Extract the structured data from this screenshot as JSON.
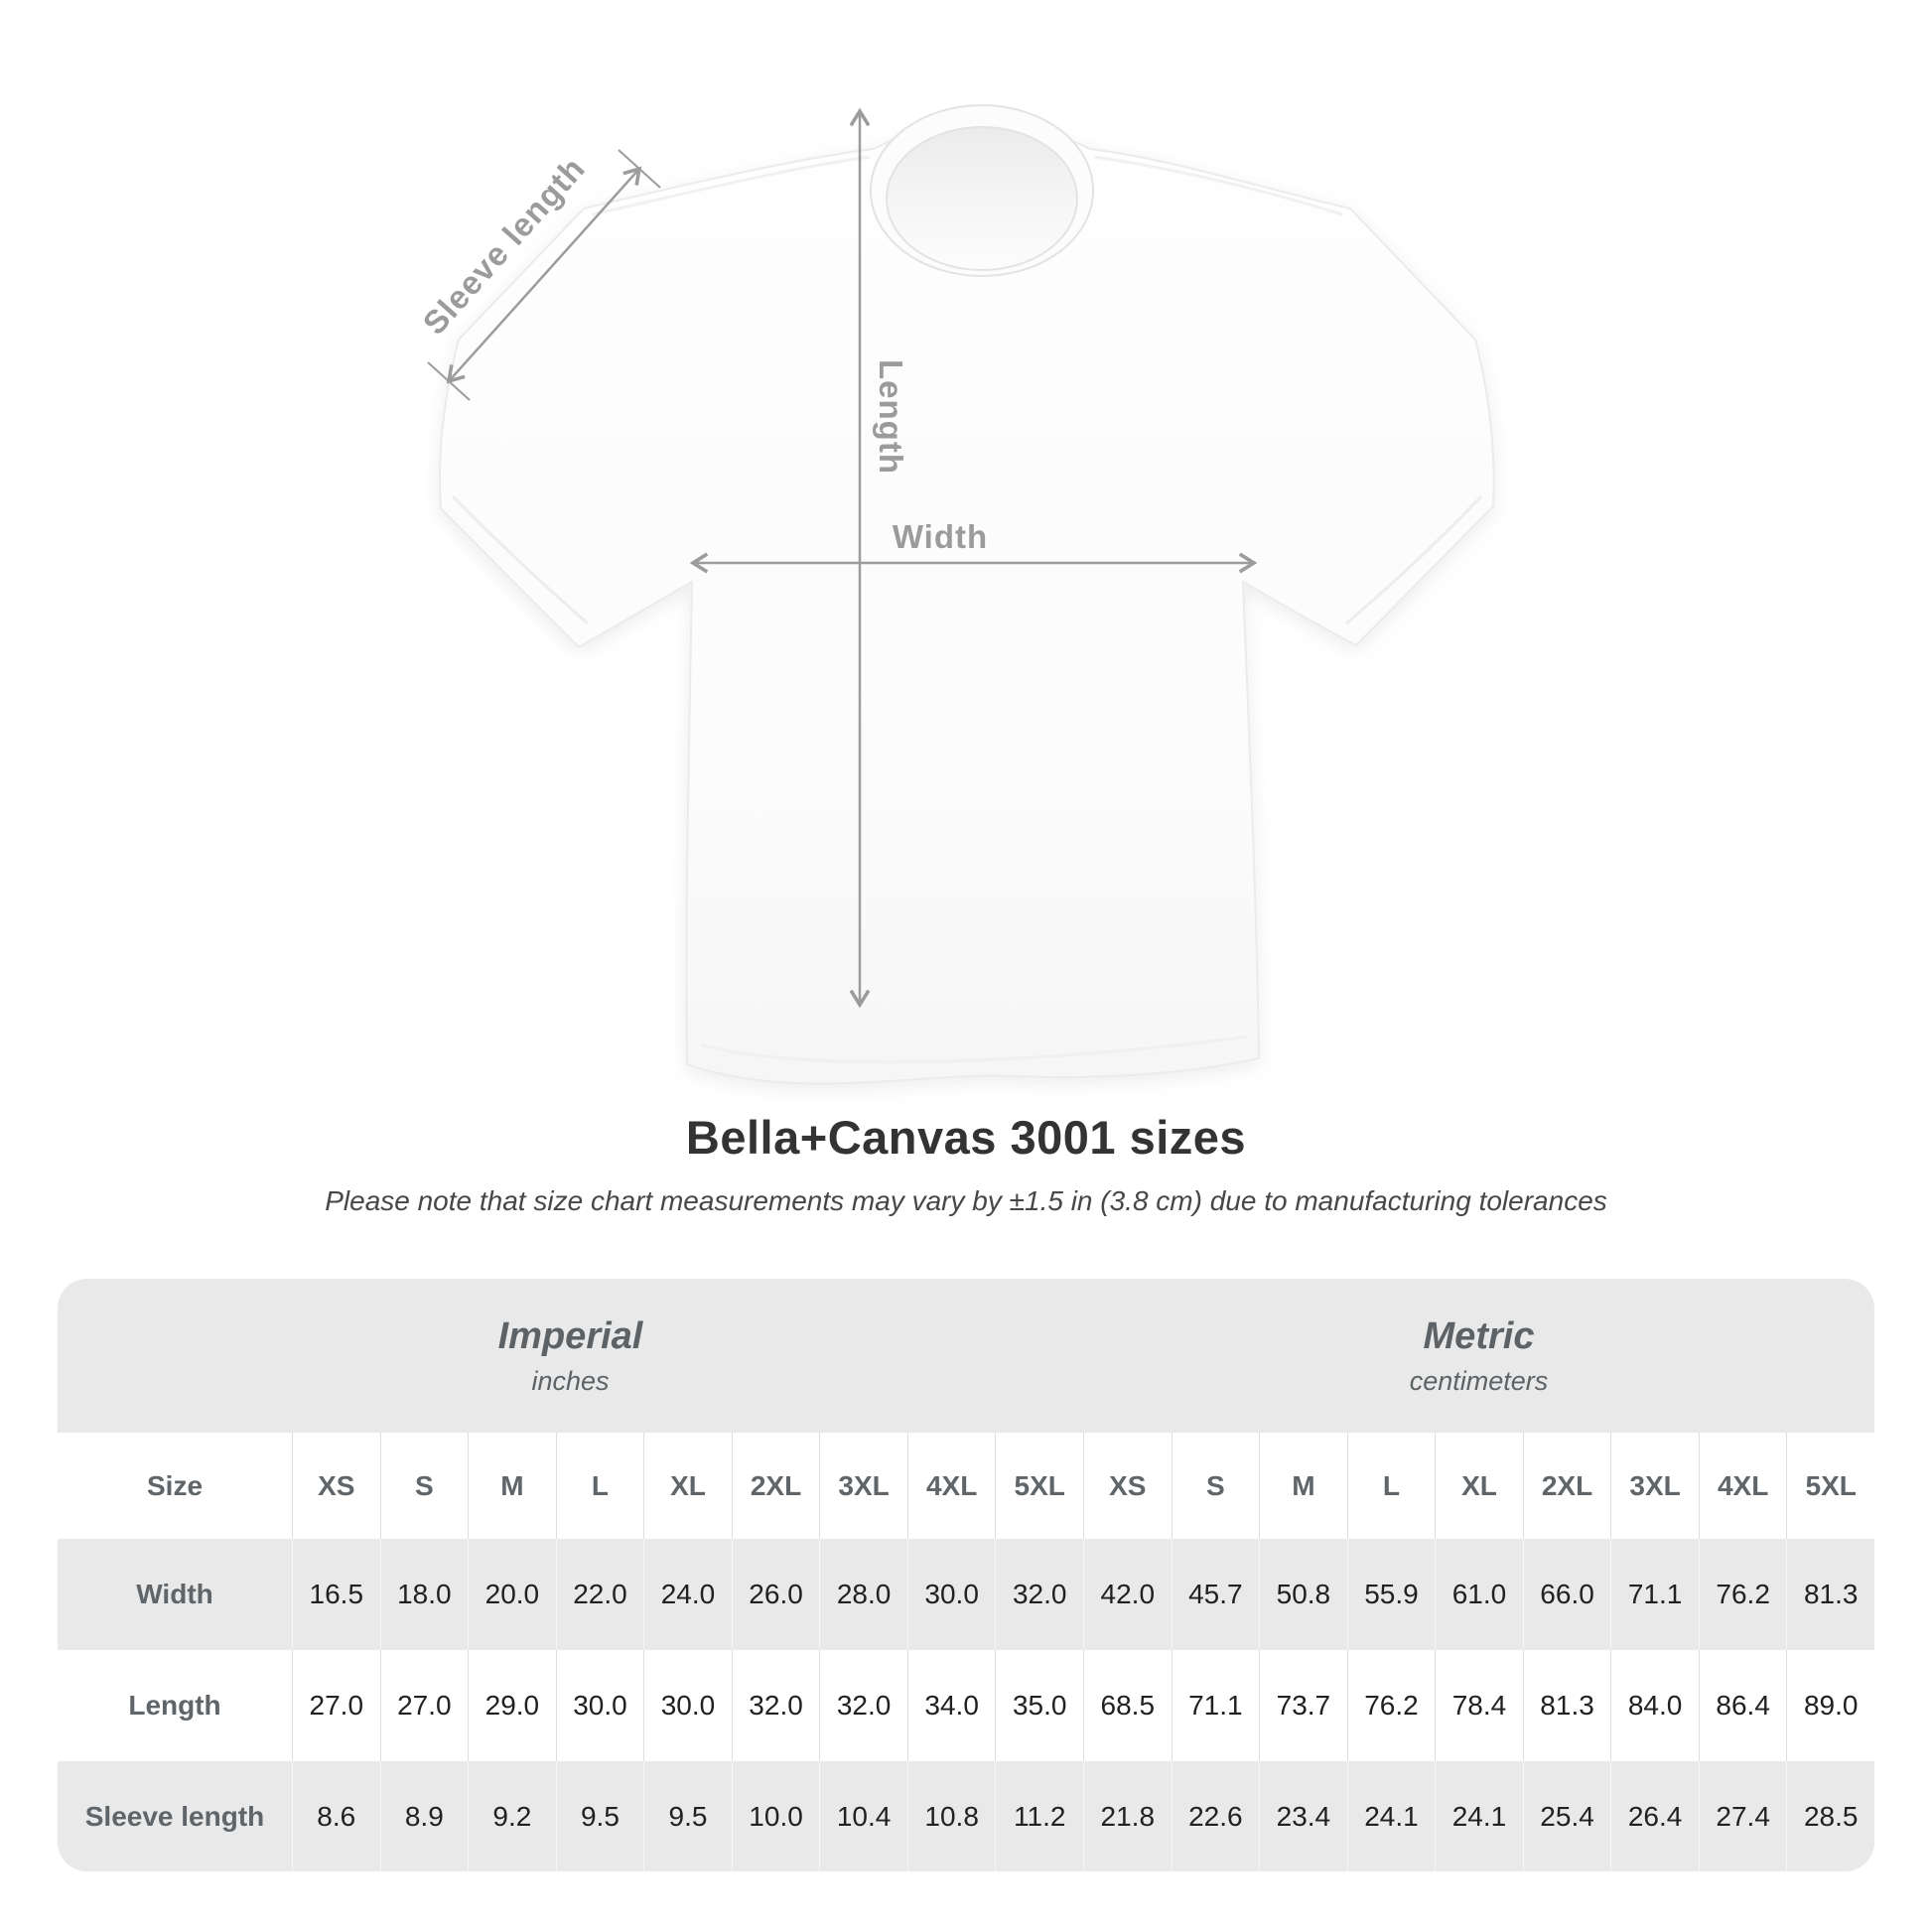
{
  "diagram": {
    "sleeve_label": "Sleeve length",
    "length_label": "Length",
    "width_label": "Width",
    "annotation_color": "#9c9c9c"
  },
  "heading": {
    "title": "Bella+Canvas 3001 sizes",
    "note": "Please note that size chart measurements may vary by ±1.5 in (3.8 cm) due to manufacturing tolerances"
  },
  "table": {
    "unit_groups": [
      {
        "name": "Imperial",
        "unit": "inches"
      },
      {
        "name": "Metric",
        "unit": "centimeters"
      }
    ],
    "corner_label": "Size",
    "sizes": [
      "XS",
      "S",
      "M",
      "L",
      "XL",
      "2XL",
      "3XL",
      "4XL",
      "5XL"
    ],
    "rows": [
      {
        "label": "Width",
        "imperial": [
          "16.5",
          "18.0",
          "20.0",
          "22.0",
          "24.0",
          "26.0",
          "28.0",
          "30.0",
          "32.0"
        ],
        "metric": [
          "42.0",
          "45.7",
          "50.8",
          "55.9",
          "61.0",
          "66.0",
          "71.1",
          "76.2",
          "81.3"
        ]
      },
      {
        "label": "Length",
        "imperial": [
          "27.0",
          "27.0",
          "29.0",
          "30.0",
          "30.0",
          "32.0",
          "32.0",
          "34.0",
          "35.0"
        ],
        "metric": [
          "68.5",
          "71.1",
          "73.7",
          "76.2",
          "78.4",
          "81.3",
          "84.0",
          "86.4",
          "89.0"
        ]
      },
      {
        "label": "Sleeve length",
        "imperial": [
          "8.6",
          "8.9",
          "9.2",
          "9.5",
          "9.5",
          "10.0",
          "10.4",
          "10.8",
          "11.2"
        ],
        "metric": [
          "21.8",
          "22.6",
          "23.4",
          "24.1",
          "24.1",
          "25.4",
          "26.4",
          "27.4",
          "28.5"
        ]
      }
    ]
  },
  "chart_data": {
    "type": "table",
    "title": "Bella+Canvas 3001 sizes",
    "note": "Please note that size chart measurements may vary by ±1.5 in (3.8 cm) due to manufacturing tolerances",
    "column_groups": [
      "Imperial (inches)",
      "Metric (centimeters)"
    ],
    "columns": [
      "Size",
      "XS",
      "S",
      "M",
      "L",
      "XL",
      "2XL",
      "3XL",
      "4XL",
      "5XL",
      "XS",
      "S",
      "M",
      "L",
      "XL",
      "2XL",
      "3XL",
      "4XL",
      "5XL"
    ],
    "rows": [
      [
        "Width",
        16.5,
        18.0,
        20.0,
        22.0,
        24.0,
        26.0,
        28.0,
        30.0,
        32.0,
        42.0,
        45.7,
        50.8,
        55.9,
        61.0,
        66.0,
        71.1,
        76.2,
        81.3
      ],
      [
        "Length",
        27.0,
        27.0,
        29.0,
        30.0,
        30.0,
        32.0,
        32.0,
        34.0,
        35.0,
        68.5,
        71.1,
        73.7,
        76.2,
        78.4,
        81.3,
        84.0,
        86.4,
        89.0
      ],
      [
        "Sleeve length",
        8.6,
        8.9,
        9.2,
        9.5,
        9.5,
        10.0,
        10.4,
        10.8,
        11.2,
        21.8,
        22.6,
        23.4,
        24.1,
        24.1,
        25.4,
        26.4,
        27.4,
        28.5
      ]
    ]
  }
}
